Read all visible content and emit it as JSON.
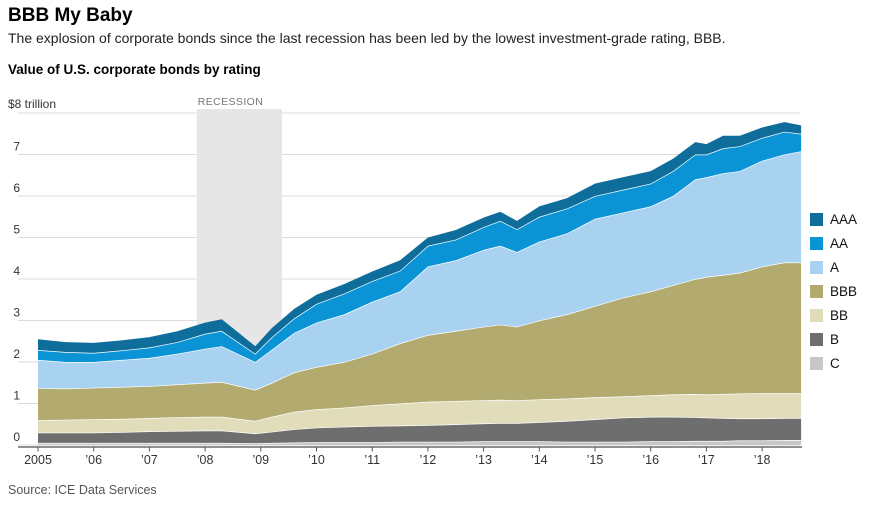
{
  "header": {
    "title": "BBB My Baby",
    "subtitle": "The explosion of corporate bonds since the last recession has been led by the lowest investment-grade rating, BBB."
  },
  "chart": {
    "title": "Value of U.S. corporate bonds by rating",
    "y_top_label": "$8 trillion",
    "recession_label": "RECESSION",
    "source": "Source: ICE Data Services"
  },
  "chart_data": {
    "type": "area",
    "stacked": true,
    "title": "Value of U.S. corporate bonds by rating",
    "unit": "trillion USD",
    "ylim": [
      0,
      8
    ],
    "y_ticks": [
      0,
      1,
      2,
      3,
      4,
      5,
      6,
      7,
      8
    ],
    "grid": true,
    "legend_position": "right",
    "x_tick_years": [
      2005,
      2006,
      2007,
      2008,
      2009,
      2010,
      2011,
      2012,
      2013,
      2014,
      2015,
      2016,
      2017,
      2018
    ],
    "x_tick_labels": [
      "2005",
      "’06",
      "’07",
      "’08",
      "’09",
      "’10",
      "’11",
      "’12",
      "’13",
      "’14",
      "’15",
      "’16",
      "’17",
      "’18"
    ],
    "recession_span": [
      2007.85,
      2009.38
    ],
    "x": [
      2005,
      2005.5,
      2006,
      2006.5,
      2007,
      2007.5,
      2008,
      2008.3,
      2008.9,
      2009.2,
      2009.6,
      2010,
      2010.5,
      2011,
      2011.5,
      2012,
      2012.5,
      2013,
      2013.3,
      2013.6,
      2014,
      2014.5,
      2015,
      2015.5,
      2016,
      2016.4,
      2016.8,
      2017,
      2017.3,
      2017.6,
      2018,
      2018.4,
      2018.7
    ],
    "series_bottom_to_top": [
      {
        "name": "C",
        "color": "#c7c7c7",
        "values": [
          0.05,
          0.05,
          0.05,
          0.05,
          0.05,
          0.05,
          0.05,
          0.05,
          0.04,
          0.05,
          0.06,
          0.07,
          0.07,
          0.07,
          0.08,
          0.08,
          0.08,
          0.09,
          0.09,
          0.09,
          0.09,
          0.08,
          0.08,
          0.08,
          0.09,
          0.09,
          0.1,
          0.1,
          0.1,
          0.11,
          0.11,
          0.12,
          0.12
        ]
      },
      {
        "name": "B",
        "color": "#6e6e6e",
        "values": [
          0.25,
          0.25,
          0.25,
          0.26,
          0.28,
          0.29,
          0.3,
          0.3,
          0.24,
          0.27,
          0.32,
          0.35,
          0.37,
          0.39,
          0.39,
          0.4,
          0.42,
          0.43,
          0.44,
          0.44,
          0.46,
          0.5,
          0.54,
          0.58,
          0.59,
          0.59,
          0.57,
          0.56,
          0.55,
          0.53,
          0.53,
          0.53,
          0.53
        ]
      },
      {
        "name": "BB",
        "color": "#e1dcba",
        "values": [
          0.3,
          0.31,
          0.32,
          0.32,
          0.32,
          0.33,
          0.33,
          0.33,
          0.3,
          0.36,
          0.42,
          0.44,
          0.46,
          0.5,
          0.53,
          0.56,
          0.56,
          0.56,
          0.56,
          0.55,
          0.55,
          0.54,
          0.53,
          0.51,
          0.52,
          0.54,
          0.56,
          0.56,
          0.58,
          0.6,
          0.61,
          0.6,
          0.6
        ]
      },
      {
        "name": "BBB",
        "color": "#b3aa70",
        "values": [
          0.77,
          0.75,
          0.76,
          0.77,
          0.77,
          0.79,
          0.82,
          0.84,
          0.75,
          0.82,
          0.95,
          1.02,
          1.1,
          1.24,
          1.45,
          1.61,
          1.69,
          1.77,
          1.81,
          1.77,
          1.9,
          2.03,
          2.2,
          2.38,
          2.5,
          2.63,
          2.77,
          2.83,
          2.87,
          2.91,
          3.05,
          3.15,
          3.15
        ]
      },
      {
        "name": "A",
        "color": "#a9d2f0",
        "values": [
          0.68,
          0.64,
          0.62,
          0.65,
          0.68,
          0.74,
          0.82,
          0.86,
          0.67,
          0.8,
          0.95,
          1.07,
          1.15,
          1.25,
          1.25,
          1.65,
          1.7,
          1.85,
          1.9,
          1.8,
          1.9,
          1.95,
          2.1,
          2.05,
          2.05,
          2.15,
          2.4,
          2.4,
          2.45,
          2.45,
          2.55,
          2.6,
          2.68
        ]
      },
      {
        "name": "AA",
        "color": "#0a93d5",
        "values": [
          0.24,
          0.24,
          0.22,
          0.23,
          0.25,
          0.28,
          0.36,
          0.37,
          0.2,
          0.3,
          0.35,
          0.45,
          0.5,
          0.5,
          0.5,
          0.5,
          0.5,
          0.55,
          0.6,
          0.55,
          0.6,
          0.6,
          0.55,
          0.55,
          0.55,
          0.6,
          0.6,
          0.55,
          0.6,
          0.6,
          0.55,
          0.55,
          0.42
        ]
      },
      {
        "name": "AAA",
        "color": "#0e6d9b",
        "values": [
          0.26,
          0.24,
          0.24,
          0.24,
          0.25,
          0.26,
          0.27,
          0.28,
          0.18,
          0.22,
          0.23,
          0.22,
          0.23,
          0.23,
          0.25,
          0.2,
          0.23,
          0.23,
          0.22,
          0.2,
          0.25,
          0.25,
          0.3,
          0.3,
          0.3,
          0.3,
          0.3,
          0.25,
          0.3,
          0.25,
          0.25,
          0.23,
          0.2
        ]
      }
    ],
    "legend_top_to_bottom": [
      "AAA",
      "AA",
      "A",
      "BBB",
      "BB",
      "B",
      "C"
    ],
    "colors": {
      "grid": "#dcdcdc",
      "recession_band": "#e6e6e6",
      "axis": "#222222",
      "separator": "#ffffff"
    }
  }
}
